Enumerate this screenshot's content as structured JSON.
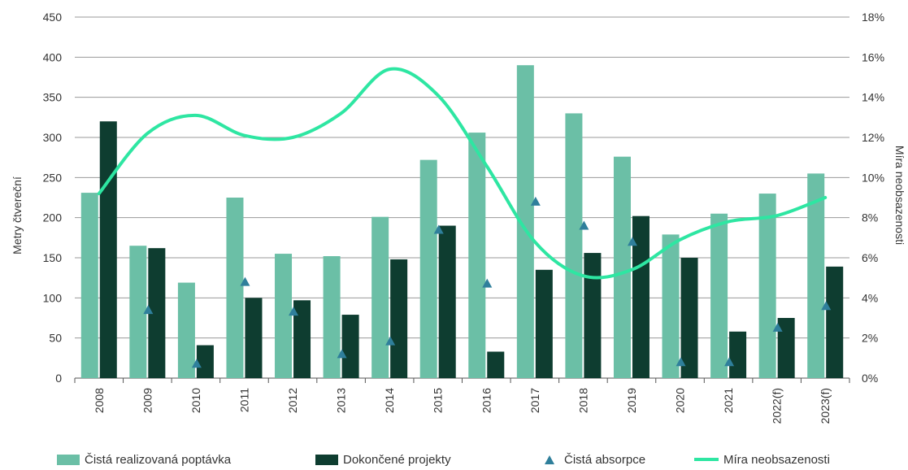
{
  "chart_data": {
    "type": "bar",
    "categories": [
      "2008",
      "2009",
      "2010",
      "2011",
      "2012",
      "2013",
      "2014",
      "2015",
      "2016",
      "2017",
      "2018",
      "2019",
      "2020",
      "2021",
      "2022(f)",
      "2023(f)"
    ],
    "ylabel": "Metry čtvereční",
    "y2label": "Míra neobsazenosti",
    "ylim": [
      0,
      450
    ],
    "yticks": [
      0,
      50,
      100,
      150,
      200,
      250,
      300,
      350,
      400,
      450
    ],
    "y2lim": [
      0,
      18
    ],
    "y2ticks": [
      "0%",
      "2%",
      "4%",
      "6%",
      "8%",
      "10%",
      "12%",
      "14%",
      "16%",
      "18%"
    ],
    "grid": true,
    "legend_position": "bottom",
    "series": [
      {
        "name": "Čistá realizovaná poptávka",
        "type": "bar",
        "axis": "left",
        "color": "#6bbfa6",
        "values": [
          231,
          165,
          119,
          225,
          155,
          152,
          201,
          272,
          306,
          390,
          330,
          276,
          179,
          205,
          230,
          255
        ]
      },
      {
        "name": "Dokončené projekty",
        "type": "bar",
        "axis": "left",
        "color": "#0e3d30",
        "values": [
          320,
          162,
          41,
          100,
          97,
          79,
          148,
          190,
          33,
          135,
          156,
          202,
          150,
          58,
          75,
          139
        ]
      },
      {
        "name": "Čistá absorpce",
        "type": "scatter",
        "axis": "left",
        "color": "#2f7f9b",
        "marker": "triangle",
        "values": [
          null,
          85,
          18,
          120,
          83,
          30,
          46,
          185,
          118,
          220,
          190,
          170,
          20,
          20,
          63,
          90
        ]
      },
      {
        "name": "Míra neobsazenosti",
        "type": "line",
        "axis": "right",
        "unit": "%",
        "color": "#2ee6a2",
        "values": [
          9.2,
          12.2,
          13.1,
          12.1,
          12.0,
          13.2,
          15.4,
          14.1,
          10.6,
          6.8,
          5.1,
          5.4,
          6.9,
          7.8,
          8.1,
          9.0
        ]
      }
    ]
  }
}
